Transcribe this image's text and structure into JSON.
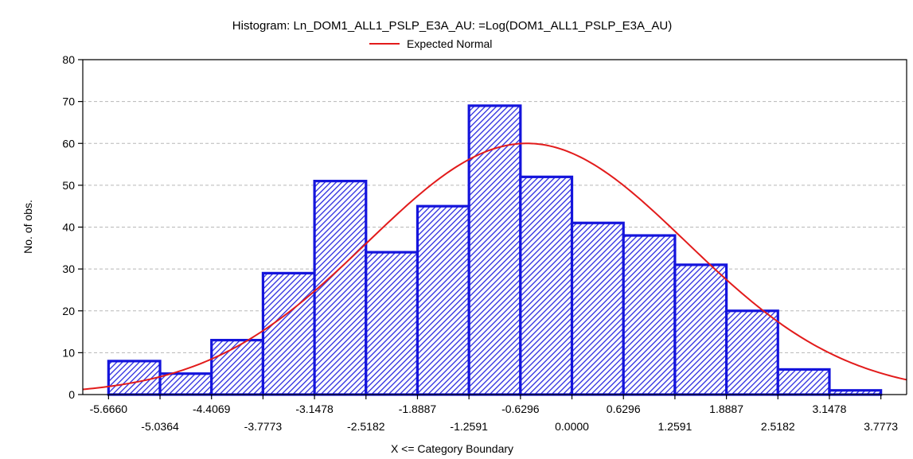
{
  "chart_data": {
    "type": "bar",
    "title": "Histogram: Ln_DOM1_ALL1_PSLP_E3A_AU: =Log(DOM1_ALL1_PSLP_E3A_AU)",
    "legend": [
      "Expected Normal"
    ],
    "xlabel": "X <= Category Boundary",
    "ylabel": "No. of obs.",
    "ylim": [
      0,
      80
    ],
    "yticks": [
      0,
      10,
      20,
      30,
      40,
      50,
      60,
      70,
      80
    ],
    "grid": true,
    "legend_position": "top-center",
    "bin_boundaries": [
      -5.666,
      -5.0364,
      -4.4069,
      -3.7773,
      -3.1478,
      -2.5182,
      -1.8887,
      -1.2591,
      -0.6296,
      0.0,
      0.6296,
      1.2591,
      1.8887,
      2.5182,
      3.1478,
      3.7773
    ],
    "x_tick_labels": [
      "-5.6660",
      "-5.0364",
      "-4.4069",
      "-3.7773",
      "-3.1478",
      "-2.5182",
      "-1.8887",
      "-1.2591",
      "-0.6296",
      "0.0000",
      "0.6296",
      "1.2591",
      "1.8887",
      "2.5182",
      "3.1478",
      "3.7773"
    ],
    "values": [
      8,
      5,
      13,
      29,
      51,
      34,
      45,
      69,
      52,
      41,
      38,
      31,
      20,
      6,
      1
    ],
    "series": [
      {
        "name": "Expected Normal",
        "type": "line",
        "peak": 60,
        "mean": -0.55,
        "sd": 1.95
      }
    ],
    "colors": {
      "bar_edge": "#1414dc",
      "bar_hatch": "#2a2ae0",
      "curve": "#e21b1b"
    }
  }
}
